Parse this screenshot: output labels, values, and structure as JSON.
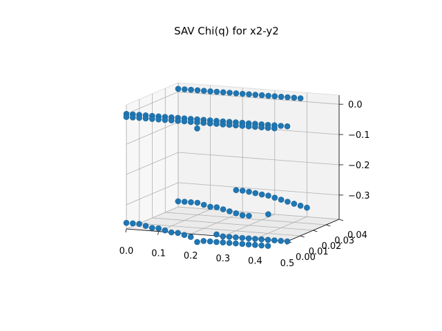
{
  "chart_data": {
    "type": "scatter",
    "projection": "3d",
    "title": "SAV Chi(q) for x2-y2",
    "xlabel": "",
    "ylabel": "",
    "zlabel": "",
    "xlim": [
      0.0,
      0.5
    ],
    "ylim": [
      0.0,
      0.04
    ],
    "zlim": [
      -0.38,
      0.03
    ],
    "x_ticks": [
      "0.0",
      "0.1",
      "0.2",
      "0.3",
      "0.4",
      "0.5"
    ],
    "y_ticks": [
      "0.00",
      "0.01",
      "0.02",
      "0.03",
      "0.04"
    ],
    "z_ticks": [
      "0.0",
      "−0.1",
      "−0.2",
      "−0.3"
    ],
    "grid": true,
    "marker_color": "#1f77b4",
    "series": [
      {
        "points": [
          [
            0.0,
            0.0,
            0.0
          ],
          [
            0.02,
            0.0,
            0.0
          ],
          [
            0.04,
            0.0,
            0.0
          ],
          [
            0.06,
            0.0,
            0.0
          ],
          [
            0.08,
            0.0,
            0.0
          ],
          [
            0.1,
            0.0,
            0.0
          ],
          [
            0.12,
            0.0,
            0.0
          ],
          [
            0.14,
            0.0,
            0.0
          ],
          [
            0.16,
            0.0,
            0.0
          ],
          [
            0.18,
            0.0,
            0.0
          ],
          [
            0.2,
            0.0,
            0.0
          ],
          [
            0.22,
            0.0,
            0.0
          ],
          [
            0.24,
            0.0,
            0.0
          ],
          [
            0.26,
            0.0,
            0.0
          ],
          [
            0.28,
            0.0,
            0.0
          ],
          [
            0.3,
            0.0,
            0.0
          ],
          [
            0.32,
            0.0,
            0.0
          ],
          [
            0.34,
            0.0,
            0.0
          ],
          [
            0.36,
            0.0,
            0.0
          ],
          [
            0.38,
            0.0,
            0.0
          ],
          [
            0.4,
            0.0,
            0.0
          ],
          [
            0.42,
            0.0,
            0.0
          ],
          [
            0.44,
            0.0,
            0.0
          ],
          [
            0.46,
            0.0,
            0.0
          ],
          [
            0.48,
            0.0,
            0.0
          ],
          [
            0.5,
            0.0,
            0.0
          ],
          [
            0.0,
            0.0,
            -0.01
          ],
          [
            0.02,
            0.0,
            -0.01
          ],
          [
            0.04,
            0.0,
            -0.01
          ],
          [
            0.06,
            0.0,
            -0.01
          ],
          [
            0.08,
            0.0,
            -0.01
          ],
          [
            0.1,
            0.0,
            -0.01
          ],
          [
            0.12,
            0.0,
            -0.01
          ],
          [
            0.14,
            0.0,
            -0.01
          ],
          [
            0.16,
            0.0,
            -0.01
          ],
          [
            0.18,
            0.0,
            -0.01
          ],
          [
            0.2,
            0.0,
            -0.01
          ],
          [
            0.22,
            0.0,
            -0.01
          ],
          [
            0.24,
            0.0,
            -0.01
          ],
          [
            0.26,
            0.0,
            -0.01
          ],
          [
            0.28,
            0.0,
            -0.01
          ],
          [
            0.3,
            0.0,
            -0.01
          ],
          [
            0.32,
            0.0,
            -0.01
          ],
          [
            0.34,
            0.0,
            -0.01
          ],
          [
            0.36,
            0.0,
            -0.01
          ],
          [
            0.38,
            0.0,
            -0.01
          ],
          [
            0.4,
            0.0,
            -0.01
          ],
          [
            0.42,
            0.0,
            -0.01
          ],
          [
            0.44,
            0.0,
            -0.01
          ],
          [
            0.46,
            0.0,
            -0.01
          ],
          [
            0.0,
            0.04,
            0.01
          ],
          [
            0.02,
            0.04,
            0.01
          ],
          [
            0.04,
            0.04,
            0.01
          ],
          [
            0.06,
            0.04,
            0.01
          ],
          [
            0.08,
            0.04,
            0.01
          ],
          [
            0.1,
            0.04,
            0.01
          ],
          [
            0.12,
            0.04,
            0.01
          ],
          [
            0.14,
            0.04,
            0.01
          ],
          [
            0.16,
            0.04,
            0.01
          ],
          [
            0.18,
            0.04,
            0.01
          ],
          [
            0.2,
            0.04,
            0.01
          ],
          [
            0.22,
            0.04,
            0.01
          ],
          [
            0.24,
            0.04,
            0.01
          ],
          [
            0.26,
            0.04,
            0.01
          ],
          [
            0.28,
            0.04,
            0.01
          ],
          [
            0.3,
            0.04,
            0.01
          ],
          [
            0.32,
            0.04,
            0.01
          ],
          [
            0.34,
            0.04,
            0.01
          ],
          [
            0.36,
            0.04,
            0.01
          ],
          [
            0.38,
            0.04,
            0.01
          ],
          [
            0.22,
            0.0,
            -0.03
          ],
          [
            0.0,
            0.0,
            -0.36
          ],
          [
            0.02,
            0.0,
            -0.36
          ],
          [
            0.04,
            0.0,
            -0.36
          ],
          [
            0.06,
            0.0,
            -0.365
          ],
          [
            0.08,
            0.0,
            -0.37
          ],
          [
            0.1,
            0.0,
            -0.37
          ],
          [
            0.12,
            0.0,
            -0.375
          ],
          [
            0.14,
            0.0,
            -0.38
          ],
          [
            0.16,
            0.0,
            -0.38
          ],
          [
            0.18,
            0.0,
            -0.385
          ],
          [
            0.2,
            0.0,
            -0.39
          ],
          [
            0.22,
            0.0,
            -0.405
          ],
          [
            0.04,
            0.03,
            -0.34
          ],
          [
            0.06,
            0.03,
            -0.34
          ],
          [
            0.08,
            0.03,
            -0.34
          ],
          [
            0.1,
            0.03,
            -0.34
          ],
          [
            0.12,
            0.03,
            -0.345
          ],
          [
            0.14,
            0.03,
            -0.35
          ],
          [
            0.16,
            0.03,
            -0.35
          ],
          [
            0.18,
            0.03,
            -0.355
          ],
          [
            0.2,
            0.03,
            -0.36
          ],
          [
            0.22,
            0.03,
            -0.365
          ],
          [
            0.24,
            0.03,
            -0.37
          ],
          [
            0.26,
            0.03,
            -0.37
          ],
          [
            0.18,
            0.04,
            -0.31
          ],
          [
            0.2,
            0.04,
            -0.31
          ],
          [
            0.22,
            0.04,
            -0.312
          ],
          [
            0.24,
            0.04,
            -0.315
          ],
          [
            0.26,
            0.04,
            -0.318
          ],
          [
            0.28,
            0.04,
            -0.32
          ],
          [
            0.3,
            0.04,
            -0.325
          ],
          [
            0.32,
            0.04,
            -0.33
          ],
          [
            0.34,
            0.04,
            -0.335
          ],
          [
            0.36,
            0.04,
            -0.34
          ],
          [
            0.38,
            0.04,
            -0.345
          ],
          [
            0.4,
            0.04,
            -0.35
          ],
          [
            0.3,
            0.0,
            -0.38
          ],
          [
            0.32,
            0.0,
            -0.38
          ],
          [
            0.34,
            0.0,
            -0.38
          ],
          [
            0.36,
            0.0,
            -0.38
          ],
          [
            0.38,
            0.0,
            -0.38
          ],
          [
            0.4,
            0.0,
            -0.38
          ],
          [
            0.42,
            0.0,
            -0.38
          ],
          [
            0.44,
            0.0,
            -0.38
          ],
          [
            0.46,
            0.0,
            -0.38
          ],
          [
            0.48,
            0.0,
            -0.38
          ],
          [
            0.5,
            0.0,
            -0.38
          ],
          [
            0.24,
            0.0,
            -0.4
          ],
          [
            0.26,
            0.0,
            -0.4
          ],
          [
            0.28,
            0.0,
            -0.4
          ],
          [
            0.3,
            0.0,
            -0.4
          ],
          [
            0.32,
            0.0,
            -0.4
          ],
          [
            0.34,
            0.0,
            -0.4
          ],
          [
            0.36,
            0.0,
            -0.4
          ],
          [
            0.38,
            0.0,
            -0.4
          ],
          [
            0.4,
            0.0,
            -0.4
          ],
          [
            0.42,
            0.0,
            -0.4
          ],
          [
            0.44,
            0.0,
            -0.4
          ],
          [
            0.28,
            0.0,
            -0.375
          ],
          [
            0.32,
            0.03,
            -0.36
          ]
        ]
      }
    ]
  }
}
